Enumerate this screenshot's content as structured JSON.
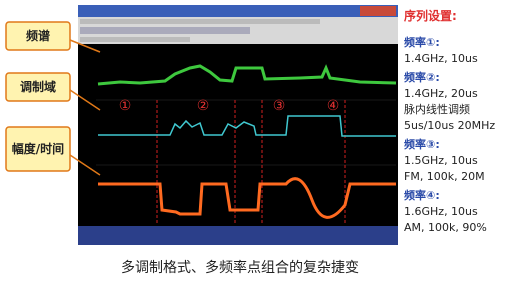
{
  "labels": [
    "频谱",
    "调制域",
    "幅度/时间"
  ],
  "markers": [
    "①",
    "②",
    "③",
    "④"
  ],
  "panel": {
    "title": "序列设置:",
    "items": [
      {
        "heading": "频率①:",
        "lines": [
          "1.4GHz, 10us"
        ]
      },
      {
        "heading": "频率②:",
        "lines": [
          "1.4GHz, 20us",
          "脉内线性调频",
          "5us/10us 20MHz"
        ]
      },
      {
        "heading": "频率③:",
        "lines": [
          "1.5GHz, 10us",
          "FM, 100k, 20M"
        ]
      },
      {
        "heading": "频率④:",
        "lines": [
          "1.6GHz, 10us",
          "AM, 100k, 90%"
        ]
      }
    ]
  },
  "caption": "多调制格式、多频率点组合的复杂捷变"
}
